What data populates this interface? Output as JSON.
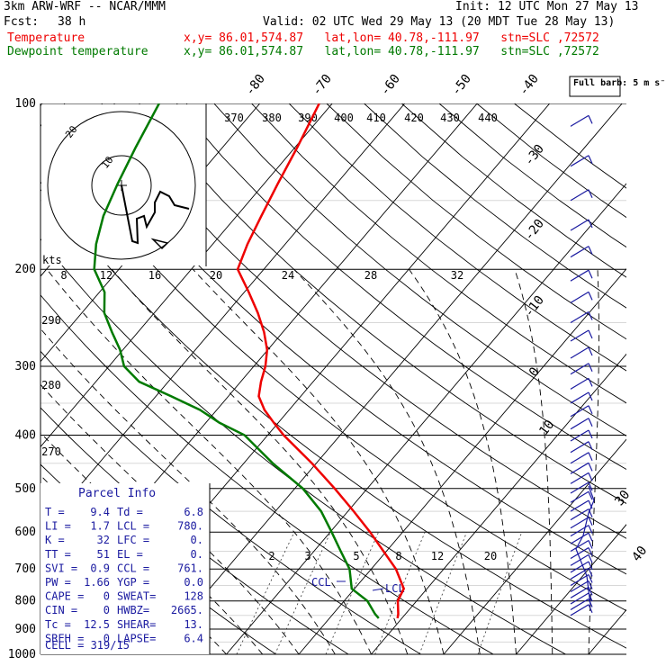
{
  "header": {
    "model": "3km ARW-WRF -- NCAR/MMM",
    "init": "Init: 12 UTC Mon 27 May 13",
    "fcst_label": "Fcst:",
    "fcst_value": "38 h",
    "valid": "Valid: 02 UTC Wed 29 May 13 (20 MDT Tue 28 May 13)",
    "temperature_label": "Temperature",
    "dewpoint_label": "Dewpoint temperature",
    "location": "x,y= 86.01,574.87   lat,lon= 40.78,-111.97   stn=SLC ,72572"
  },
  "colors": {
    "temperature": "#ee0000",
    "dewpoint": "#007a00",
    "grid": "#000000",
    "wind": "#1a1aa0"
  },
  "full_barb": "Full barb: 5 m s⁻¹",
  "parcel": {
    "title": "Parcel Info",
    "rows": [
      {
        "l1": "T  =",
        "v1": "9.4",
        "l2": "Td =",
        "v2": "6.8"
      },
      {
        "l1": "LI =",
        "v1": "1.7",
        "l2": "LCL =",
        "v2": "780."
      },
      {
        "l1": "K  =",
        "v1": "32",
        "l2": "LFC =",
        "v2": "0."
      },
      {
        "l1": "TT =",
        "v1": "51",
        "l2": "EL  =",
        "v2": "0."
      },
      {
        "l1": "SVI =",
        "v1": "0.9",
        "l2": "CCL =",
        "v2": "761."
      },
      {
        "l1": "PW =",
        "v1": "1.66",
        "l2": "YGP =",
        "v2": "0.0"
      },
      {
        "l1": "CAPE =",
        "v1": "0",
        "l2": "SWEAT=",
        "v2": "128"
      },
      {
        "l1": "CIN =",
        "v1": "0",
        "l2": "HWBZ=",
        "v2": "2665."
      },
      {
        "l1": "Tc =",
        "v1": "12.5",
        "l2": "SHEAR=",
        "v2": "13."
      },
      {
        "l1": "SREH =",
        "v1": "0",
        "l2": "LAPSE=",
        "v2": "6.4"
      }
    ],
    "cell": "CELL = 319/15"
  },
  "hodograph": {
    "units": "kts",
    "rings": [
      "10",
      "20"
    ],
    "speed_ticks": [
      "8",
      "12",
      "16",
      "20",
      "24",
      "28",
      "32"
    ]
  },
  "chart_data": {
    "type": "skew-t log-p",
    "pressure_levels": [
      100,
      200,
      300,
      400,
      500,
      600,
      700,
      800,
      900,
      1000
    ],
    "temperature_isotherm_labels": [
      "-80",
      "-70",
      "-60",
      "-50",
      "-40",
      "-30",
      "-20",
      "-10",
      "0",
      "10",
      "30",
      "40"
    ],
    "theta_labels_top": [
      "370",
      "380",
      "390",
      "400",
      "410",
      "420",
      "430",
      "440"
    ],
    "theta_labels_left": [
      "290",
      "280",
      "270"
    ],
    "mixing_ratio_labels": [
      "2",
      "3",
      "5",
      "8",
      "12",
      "20"
    ],
    "annotations": [
      "CCL",
      "LCL"
    ],
    "series": [
      {
        "name": "Temperature",
        "p": [
          860,
          845,
          800,
          760,
          700,
          650,
          600,
          550,
          500,
          450,
          400,
          380,
          360,
          340,
          320,
          300,
          280,
          260,
          240,
          220,
          200,
          180,
          160,
          140,
          120,
          100
        ],
        "t": [
          9.4,
          9.0,
          7.4,
          6.8,
          3.4,
          -0.4,
          -4.5,
          -9.2,
          -14.5,
          -20.6,
          -27.8,
          -30.6,
          -33.4,
          -35.8,
          -37.2,
          -38.4,
          -40.1,
          -42.6,
          -45.7,
          -49.4,
          -53.6,
          -55.2,
          -56.6,
          -58.1,
          -59.7,
          -61.8
        ]
      },
      {
        "name": "Dewpoint temperature",
        "p": [
          860,
          845,
          800,
          760,
          700,
          650,
          600,
          550,
          500,
          450,
          400,
          380,
          360,
          340,
          320,
          300,
          280,
          260,
          240,
          220,
          200,
          180,
          160,
          140,
          120,
          100
        ],
        "t": [
          6.8,
          5.8,
          3.2,
          -0.4,
          -3.0,
          -6.3,
          -9.8,
          -13.7,
          -18.9,
          -26.0,
          -33.2,
          -38.1,
          -42.3,
          -47.9,
          -54.0,
          -57.9,
          -60.4,
          -63.6,
          -66.9,
          -69.3,
          -73.4,
          -76.1,
          -78.4,
          -80.2,
          -82.0,
          -83.9
        ]
      }
    ]
  }
}
